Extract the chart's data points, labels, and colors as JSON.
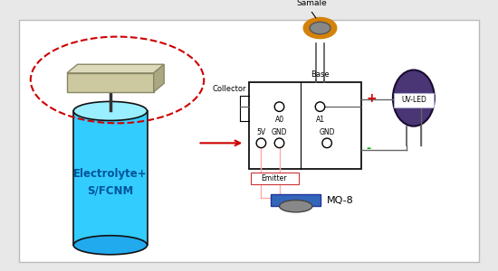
{
  "bg_color": "#e8e8e8",
  "panel_color": "#ffffff",
  "panel_border": "#bbbbbb",
  "cylinder_color": "#33ccff",
  "cylinder_top_color": "#99eeff",
  "cylinder_border": "#111111",
  "electrode_color": "#ccc8a0",
  "electrode_top": "#dddabb",
  "electrode_side": "#aaa880",
  "dashed_ellipse_color": "#cc0000",
  "arrow_color": "#cc0000",
  "box_color": "#ffffff",
  "box_border": "#111111",
  "sample_outer": "#d4820a",
  "sample_inner": "#888888",
  "uvled_color": "#4a3575",
  "uvled_label_bg": "#ffffff",
  "wire_color_red": "#ffaaaa",
  "terminal_plus": "#cc0000",
  "terminal_minus": "#00aa00",
  "mq8_top_color": "#3366bb",
  "mq8_bot_color": "#888888",
  "text_color": "#000000",
  "electrolyte_text": "#005599",
  "label_collector": "Collector",
  "label_base": "Base",
  "label_emitter": "Emitter",
  "label_sample": "Samale",
  "label_5v": "5V",
  "label_gnd1": "GND",
  "label_gnd2": "GND",
  "label_a0": "A0",
  "label_a1": "A1",
  "label_uvled": "UV-LED",
  "label_mq8": "MQ-8",
  "label_electrolyte": "Electrolyte+\nS/FCNM",
  "label_plus": "+",
  "label_minus": "-"
}
